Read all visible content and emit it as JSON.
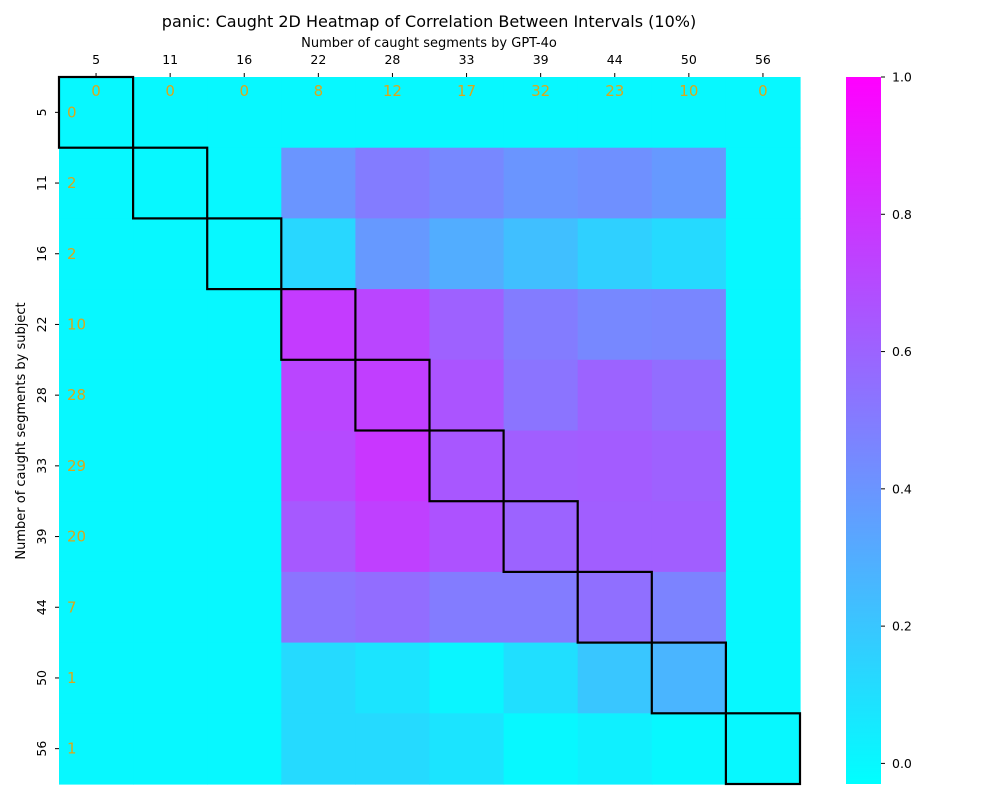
{
  "chart_data": {
    "type": "heatmap",
    "title": "panic: Caught 2D Heatmap of Correlation Between Intervals (10%)",
    "xlabel": "Number of caught segments by GPT-4o",
    "ylabel": "Number of caught segments by subject",
    "x_categories": [
      "5",
      "11",
      "16",
      "22",
      "28",
      "33",
      "39",
      "44",
      "50",
      "56"
    ],
    "y_categories": [
      "5",
      "11",
      "16",
      "22",
      "28",
      "33",
      "39",
      "44",
      "50",
      "56"
    ],
    "x_counts": [
      "0",
      "0",
      "0",
      "8",
      "12",
      "17",
      "32",
      "23",
      "10",
      "0"
    ],
    "y_counts": [
      "0",
      "2",
      "2",
      "10",
      "28",
      "29",
      "20",
      "7",
      "1",
      "1"
    ],
    "values": [
      [
        0,
        0,
        0,
        0,
        0,
        0,
        0,
        0,
        0,
        0
      ],
      [
        0,
        0,
        0,
        0.4,
        0.5,
        0.45,
        0.4,
        0.42,
        0.38,
        0
      ],
      [
        0,
        0,
        0,
        0.13,
        0.38,
        0.3,
        0.23,
        0.16,
        0.12,
        0
      ],
      [
        0,
        0,
        0,
        0.76,
        0.72,
        0.61,
        0.5,
        0.45,
        0.46,
        0
      ],
      [
        0,
        0,
        0,
        0.72,
        0.75,
        0.66,
        0.53,
        0.6,
        0.56,
        0
      ],
      [
        0,
        0,
        0,
        0.7,
        0.78,
        0.65,
        0.62,
        0.63,
        0.61,
        0
      ],
      [
        0,
        0,
        0,
        0.64,
        0.74,
        0.67,
        0.6,
        0.62,
        0.62,
        0
      ],
      [
        0,
        0,
        0,
        0.53,
        0.56,
        0.5,
        0.5,
        0.55,
        0.47,
        0
      ],
      [
        0,
        0,
        0,
        0.12,
        0.08,
        0.01,
        0.1,
        0.2,
        0.27,
        0
      ],
      [
        0,
        0,
        0,
        0.12,
        0.12,
        0.08,
        0.0,
        0.03,
        0.0,
        0
      ]
    ],
    "vmin": -0.03,
    "vmax": 1.0,
    "colorbar_ticks": [
      "0.0",
      "0.2",
      "0.4",
      "0.6",
      "0.8",
      "1.0"
    ],
    "colormap": "cool",
    "color_low": "#00ffff",
    "color_high": "#ff00ff",
    "count_label_color": "#d9a81b",
    "diagonal_highlight": true,
    "grid": false
  }
}
